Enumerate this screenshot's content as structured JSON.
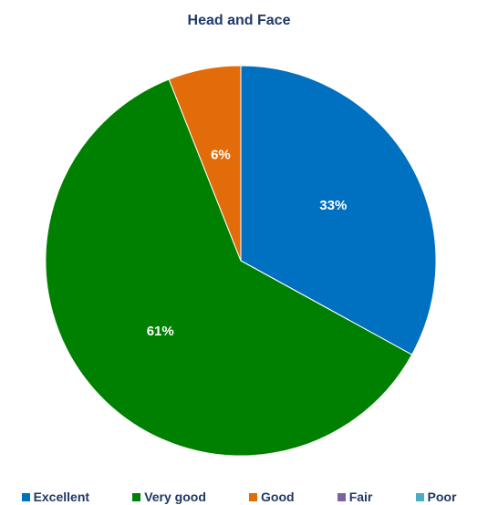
{
  "chart_data": {
    "type": "pie",
    "title": "Head and Face",
    "categories": [
      "Excellent",
      "Very good",
      "Good",
      "Fair",
      "Poor"
    ],
    "values": [
      33,
      61,
      6,
      0,
      0
    ],
    "data_labels": [
      "33%",
      "61%",
      "6%",
      "",
      ""
    ],
    "colors": [
      "#0070c0",
      "#008000",
      "#e36c0a",
      "#7f5fa6",
      "#4bacc6"
    ],
    "start_angle": "12 o'clock, clockwise",
    "legend_position": "bottom"
  }
}
